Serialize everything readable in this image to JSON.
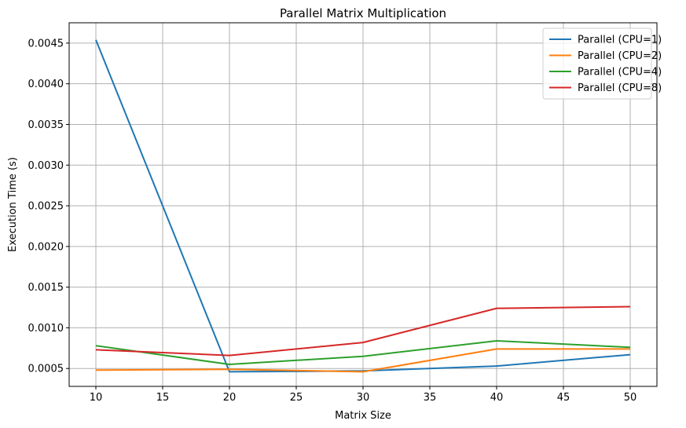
{
  "chart_data": {
    "type": "line",
    "title": "Parallel Matrix Multiplication",
    "xlabel": "Matrix Size",
    "ylabel": "Execution Time (s)",
    "x": [
      10,
      20,
      30,
      40,
      50
    ],
    "xticks": [
      "10",
      "15",
      "20",
      "25",
      "30",
      "35",
      "40",
      "45",
      "50"
    ],
    "xtick_values": [
      10,
      15,
      20,
      25,
      30,
      35,
      40,
      45,
      50
    ],
    "yticks": [
      "0.0005",
      "0.0010",
      "0.0015",
      "0.0020",
      "0.0025",
      "0.0030",
      "0.0035",
      "0.0040",
      "0.0045"
    ],
    "ytick_values": [
      0.0005,
      0.001,
      0.0015,
      0.002,
      0.0025,
      0.003,
      0.0035,
      0.004,
      0.0045
    ],
    "xlim": [
      8,
      52
    ],
    "ylim": [
      0.00028,
      0.00475
    ],
    "grid": true,
    "legend_position": "top-right",
    "series": [
      {
        "name": "Parallel (CPU=1)",
        "color": "#1f77b4",
        "values": [
          0.00454,
          0.00046,
          0.00047,
          0.00053,
          0.00067
        ]
      },
      {
        "name": "Parallel (CPU=2)",
        "color": "#ff7f0e",
        "values": [
          0.00048,
          0.00049,
          0.00046,
          0.00074,
          0.00074
        ]
      },
      {
        "name": "Parallel (CPU=4)",
        "color": "#2ca02c",
        "values": [
          0.00078,
          0.00055,
          0.00065,
          0.00084,
          0.00076
        ]
      },
      {
        "name": "Parallel (CPU=8)",
        "color": "#d62728",
        "values": [
          0.00073,
          0.00066,
          0.00082,
          0.00124,
          0.00126
        ]
      }
    ]
  }
}
